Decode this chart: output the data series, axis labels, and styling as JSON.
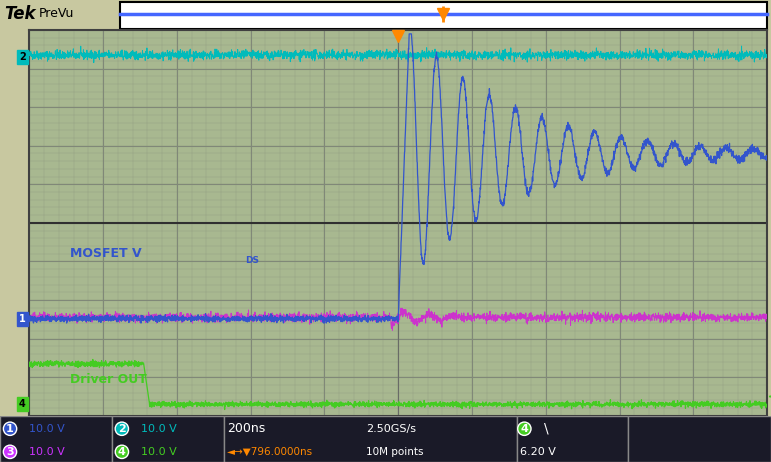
{
  "bg_color": "#c8c8a0",
  "screen_bg": "#a8b890",
  "grid_color": "#808878",
  "ch1_color": "#3355cc",
  "ch2_color": "#00bbbb",
  "ch3_color": "#cc33cc",
  "ch4_color": "#44cc22",
  "trigger_color": "#ff8800",
  "title_bg": "#f0f0e8",
  "status_bg": "#1a1a28",
  "status_text": "#ffffff",
  "border_color": "#404040",
  "n_points": 3000,
  "trigger_div": 5.0,
  "mosfet_label": "MOSFET V",
  "driver_label": "Driver OUT",
  "ch1_scale": "10.0 V",
  "ch2_scale": "10.0 V",
  "ch3_scale": "10.0 V",
  "ch4_scale": "10.0 V",
  "time_scale": "200ns",
  "sample_rate": "2.50GS/s",
  "trigger_pos": "796.0000ns",
  "points": "10M points",
  "voltage": "6.20 V"
}
